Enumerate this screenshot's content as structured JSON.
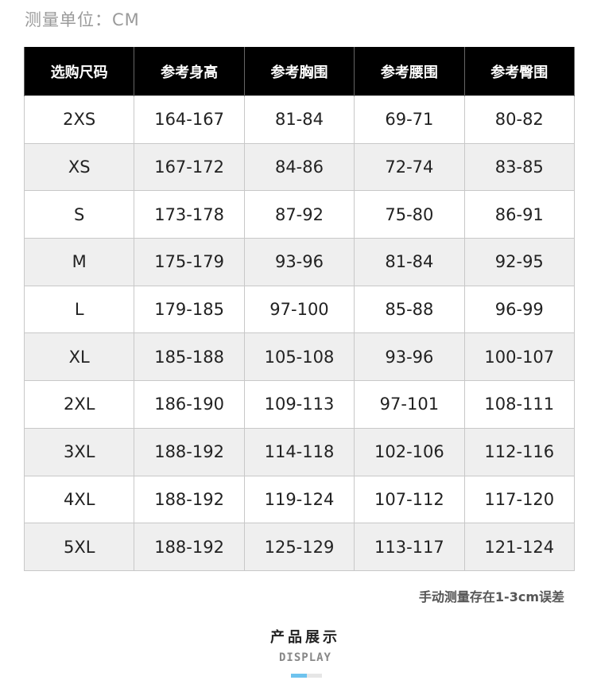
{
  "unit_label": "测量单位：CM",
  "table": {
    "headers": [
      "选购尺码",
      "参考身高",
      "参考胸围",
      "参考腰围",
      "参考臀围"
    ],
    "rows": [
      [
        "2XS",
        "164-167",
        "81-84",
        "69-71",
        "80-82"
      ],
      [
        "XS",
        "167-172",
        "84-86",
        "72-74",
        "83-85"
      ],
      [
        "S",
        "173-178",
        "87-92",
        "75-80",
        "86-91"
      ],
      [
        "M",
        "175-179",
        "93-96",
        "81-84",
        "92-95"
      ],
      [
        "L",
        "179-185",
        "97-100",
        "85-88",
        "96-99"
      ],
      [
        "XL",
        "185-188",
        "105-108",
        "93-96",
        "100-107"
      ],
      [
        "2XL",
        "186-190",
        "109-113",
        "97-101",
        "108-111"
      ],
      [
        "3XL",
        "188-192",
        "114-118",
        "102-106",
        "112-116"
      ],
      [
        "4XL",
        "188-192",
        "119-124",
        "107-112",
        "117-120"
      ],
      [
        "5XL",
        "188-192",
        "125-129",
        "113-117",
        "121-124"
      ]
    ]
  },
  "note": "手动测量存在1-3cm误差",
  "section": {
    "title": "产品展示",
    "subtitle": "DISPLAY",
    "indicator_progress": 0.5,
    "accent_color": "#6ec3ee"
  }
}
